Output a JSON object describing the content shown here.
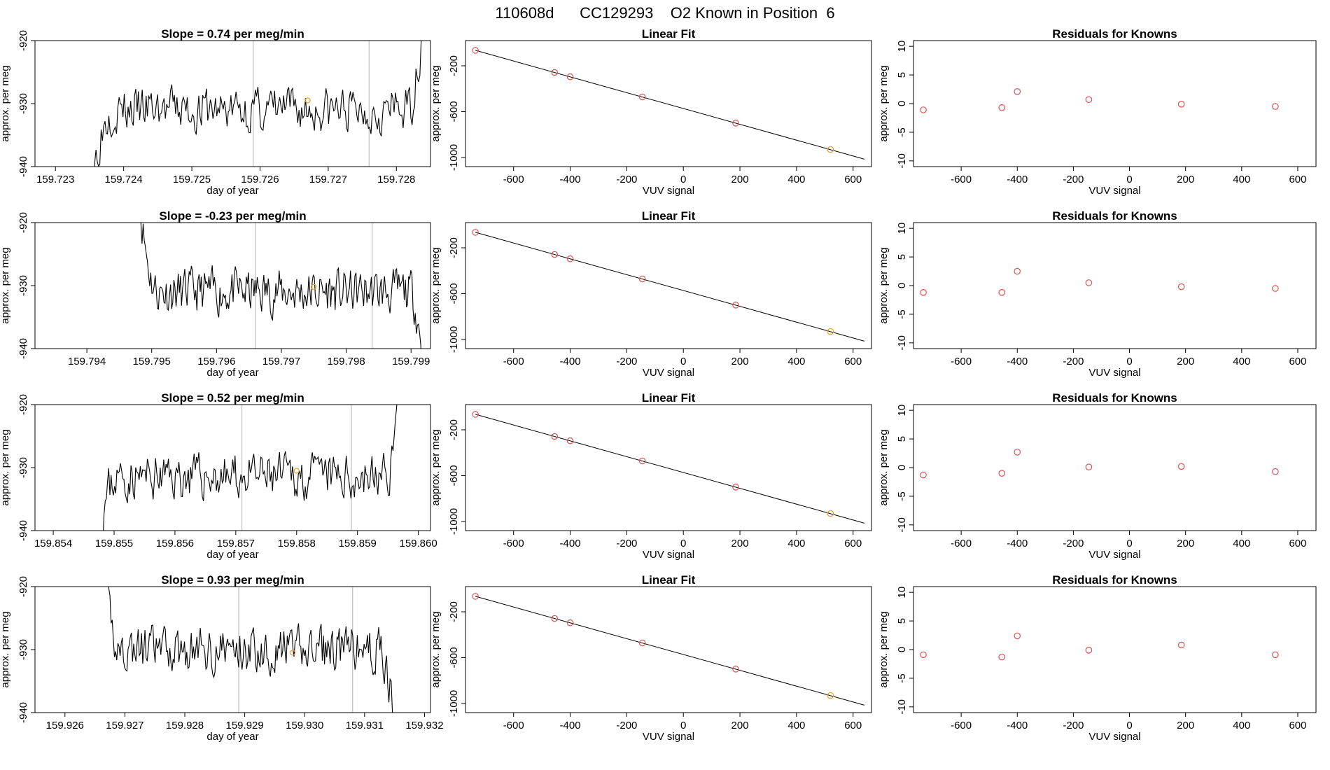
{
  "page_title": "110608d      CC129293    O2 Known in Position  6",
  "colors": {
    "ink": "#000000",
    "guide": "#bfbfbf",
    "residual": "#e05050",
    "known": "#e8a020",
    "frame": "#000000"
  },
  "chart_data": [
    {
      "type": "line",
      "title": "Slope =  0.74  per meg/min",
      "xlabel": "day of year",
      "ylabel": "approx. per meg",
      "xlim": [
        159.7227,
        159.7285
      ],
      "ylim": [
        -940,
        -920
      ],
      "xticks": [
        159.723,
        159.724,
        159.725,
        159.726,
        159.727,
        159.728
      ],
      "xtick_labels": [
        "159.723",
        "159.724",
        "159.725",
        "159.726",
        "159.727",
        "159.728"
      ],
      "yticks": [
        -940,
        -930,
        -920
      ],
      "ytick_labels": [
        "-940",
        "-930",
        "-920"
      ],
      "guides": [
        159.7259,
        159.7276
      ],
      "known_point": [
        159.7267,
        -929.5
      ],
      "x_start": 159.7235,
      "x_end": 159.7284,
      "baseline": -931,
      "amplitude": 3.2,
      "start_mode": "rise",
      "end_mode": "rise",
      "seed": 3
    },
    {
      "type": "scatter",
      "title": "Linear Fit",
      "xlabel": "VUV signal",
      "ylabel": "approx. per meg",
      "xlim": [
        -770,
        665
      ],
      "ylim": [
        -1080,
        20
      ],
      "xticks": [
        -600,
        -400,
        -200,
        0,
        200,
        400,
        600
      ],
      "xtick_labels": [
        "-600",
        "-400",
        "-200",
        "0",
        "200",
        "400",
        "600"
      ],
      "yticks": [
        -1000,
        -600,
        -200
      ],
      "ytick_labels": [
        "-1000",
        "-600",
        "-200"
      ],
      "fit_line": [
        [
          -735,
          -65
        ],
        [
          640,
          -1015
        ]
      ],
      "x": [
        -735,
        -455,
        -400,
        -145,
        185,
        520
      ],
      "y": [
        -65,
        -258,
        -296,
        -472,
        -700,
        -931
      ],
      "point_colors": [
        "residual",
        "residual",
        "residual",
        "residual",
        "residual",
        "known"
      ]
    },
    {
      "type": "scatter",
      "title": "Residuals for Knowns",
      "xlabel": "VUV signal",
      "ylabel": "approx. per meg",
      "xlim": [
        -770,
        665
      ],
      "ylim": [
        -11,
        11
      ],
      "xticks": [
        -600,
        -400,
        -200,
        0,
        200,
        400,
        600
      ],
      "xtick_labels": [
        "-600",
        "-400",
        "-200",
        "0",
        "200",
        "400",
        "600"
      ],
      "yticks": [
        -10,
        -5,
        0,
        5,
        10
      ],
      "ytick_labels": [
        "-10",
        "-5",
        "0",
        "5",
        "10"
      ],
      "x": [
        -735,
        -455,
        -400,
        -145,
        185,
        520
      ],
      "y": [
        -1.1,
        -0.7,
        2.1,
        0.7,
        -0.1,
        -0.5
      ]
    },
    {
      "type": "line",
      "title": "Slope =  -0.23  per meg/min",
      "xlabel": "day of year",
      "ylabel": "approx. per meg",
      "xlim": [
        159.7932,
        159.7993
      ],
      "ylim": [
        -940,
        -920
      ],
      "xticks": [
        159.794,
        159.795,
        159.796,
        159.797,
        159.798,
        159.799
      ],
      "xtick_labels": [
        "159.794",
        "159.795",
        "159.796",
        "159.797",
        "159.798",
        "159.799"
      ],
      "yticks": [
        -940,
        -930,
        -920
      ],
      "ytick_labels": [
        "-940",
        "-930",
        "-920"
      ],
      "guides": [
        159.7966,
        159.7984
      ],
      "known_point": [
        159.7975,
        -930.2
      ],
      "x_start": 159.7948,
      "x_end": 159.7992,
      "baseline": -931,
      "amplitude": 3.2,
      "start_mode": "fall",
      "end_mode": "fall",
      "seed": 11
    },
    {
      "type": "scatter",
      "title": "Linear Fit",
      "xlabel": "VUV signal",
      "ylabel": "approx. per meg",
      "xlim": [
        -770,
        665
      ],
      "ylim": [
        -1080,
        20
      ],
      "xticks": [
        -600,
        -400,
        -200,
        0,
        200,
        400,
        600
      ],
      "xtick_labels": [
        "-600",
        "-400",
        "-200",
        "0",
        "200",
        "400",
        "600"
      ],
      "yticks": [
        -1000,
        -600,
        -200
      ],
      "ytick_labels": [
        "-1000",
        "-600",
        "-200"
      ],
      "fit_line": [
        [
          -735,
          -65
        ],
        [
          640,
          -1015
        ]
      ],
      "x": [
        -735,
        -455,
        -400,
        -145,
        185,
        520
      ],
      "y": [
        -65,
        -258,
        -296,
        -472,
        -700,
        -931
      ],
      "point_colors": [
        "residual",
        "residual",
        "residual",
        "residual",
        "residual",
        "known"
      ]
    },
    {
      "type": "scatter",
      "title": "Residuals for Knowns",
      "xlabel": "VUV signal",
      "ylabel": "approx. per meg",
      "xlim": [
        -770,
        665
      ],
      "ylim": [
        -11,
        11
      ],
      "xticks": [
        -600,
        -400,
        -200,
        0,
        200,
        400,
        600
      ],
      "xtick_labels": [
        "-600",
        "-400",
        "-200",
        "0",
        "200",
        "400",
        "600"
      ],
      "yticks": [
        -10,
        -5,
        0,
        5,
        10
      ],
      "ytick_labels": [
        "-10",
        "-5",
        "0",
        "5",
        "10"
      ],
      "x": [
        -735,
        -455,
        -400,
        -145,
        185,
        520
      ],
      "y": [
        -1.2,
        -1.2,
        2.5,
        0.5,
        -0.2,
        -0.5
      ]
    },
    {
      "type": "line",
      "title": "Slope =  0.52  per meg/min",
      "xlabel": "day of year",
      "ylabel": "approx. per meg",
      "xlim": [
        159.8537,
        159.8602
      ],
      "ylim": [
        -940,
        -920
      ],
      "xticks": [
        159.854,
        159.855,
        159.856,
        159.857,
        159.858,
        159.859,
        159.86
      ],
      "xtick_labels": [
        "159.854",
        "159.855",
        "159.856",
        "159.857",
        "159.858",
        "159.859",
        "159.860"
      ],
      "yticks": [
        -940,
        -930,
        -920
      ],
      "ytick_labels": [
        "-940",
        "-930",
        "-920"
      ],
      "guides": [
        159.8571,
        159.8589
      ],
      "known_point": [
        159.858,
        -930.5
      ],
      "x_start": 159.8547,
      "x_end": 159.8597,
      "baseline": -931.5,
      "amplitude": 3.2,
      "start_mode": "rise",
      "end_mode": "rise",
      "seed": 23
    },
    {
      "type": "scatter",
      "title": "Linear Fit",
      "xlabel": "VUV signal",
      "ylabel": "approx. per meg",
      "xlim": [
        -770,
        665
      ],
      "ylim": [
        -1080,
        20
      ],
      "xticks": [
        -600,
        -400,
        -200,
        0,
        200,
        400,
        600
      ],
      "xtick_labels": [
        "-600",
        "-400",
        "-200",
        "0",
        "200",
        "400",
        "600"
      ],
      "yticks": [
        -1000,
        -600,
        -200
      ],
      "ytick_labels": [
        "-1000",
        "-600",
        "-200"
      ],
      "fit_line": [
        [
          -735,
          -65
        ],
        [
          640,
          -1015
        ]
      ],
      "x": [
        -735,
        -455,
        -400,
        -145,
        185,
        520
      ],
      "y": [
        -65,
        -258,
        -296,
        -472,
        -700,
        -931
      ],
      "point_colors": [
        "residual",
        "residual",
        "residual",
        "residual",
        "residual",
        "known"
      ]
    },
    {
      "type": "scatter",
      "title": "Residuals for Knowns",
      "xlabel": "VUV signal",
      "ylabel": "approx. per meg",
      "xlim": [
        -770,
        665
      ],
      "ylim": [
        -11,
        11
      ],
      "xticks": [
        -600,
        -400,
        -200,
        0,
        200,
        400,
        600
      ],
      "xtick_labels": [
        "-600",
        "-400",
        "-200",
        "0",
        "200",
        "400",
        "600"
      ],
      "yticks": [
        -10,
        -5,
        0,
        5,
        10
      ],
      "ytick_labels": [
        "-10",
        "-5",
        "0",
        "5",
        "10"
      ],
      "x": [
        -735,
        -455,
        -400,
        -145,
        185,
        520
      ],
      "y": [
        -1.3,
        -1.0,
        2.7,
        0.1,
        0.2,
        -0.7
      ]
    },
    {
      "type": "line",
      "title": "Slope =  0.93  per meg/min",
      "xlabel": "day of year",
      "ylabel": "approx. per meg",
      "xlim": [
        159.9255,
        159.9321
      ],
      "ylim": [
        -940,
        -920
      ],
      "xticks": [
        159.926,
        159.927,
        159.928,
        159.929,
        159.93,
        159.931,
        159.932
      ],
      "xtick_labels": [
        "159.926",
        "159.927",
        "159.928",
        "159.929",
        "159.930",
        "159.931",
        "159.932"
      ],
      "yticks": [
        -940,
        -930,
        -920
      ],
      "ytick_labels": [
        "-940",
        "-930",
        "-920"
      ],
      "guides": [
        159.9289,
        159.9308
      ],
      "known_point": [
        159.9298,
        -930.5
      ],
      "x_start": 159.9266,
      "x_end": 159.9315,
      "baseline": -930,
      "amplitude": 3.2,
      "start_mode": "fall",
      "end_mode": "fall",
      "seed": 41
    },
    {
      "type": "scatter",
      "title": "Linear Fit",
      "xlabel": "VUV signal",
      "ylabel": "approx. per meg",
      "xlim": [
        -770,
        665
      ],
      "ylim": [
        -1080,
        20
      ],
      "xticks": [
        -600,
        -400,
        -200,
        0,
        200,
        400,
        600
      ],
      "xtick_labels": [
        "-600",
        "-400",
        "-200",
        "0",
        "200",
        "400",
        "600"
      ],
      "yticks": [
        -1000,
        -600,
        -200
      ],
      "ytick_labels": [
        "-1000",
        "-600",
        "-200"
      ],
      "fit_line": [
        [
          -735,
          -65
        ],
        [
          640,
          -1015
        ]
      ],
      "x": [
        -735,
        -455,
        -400,
        -145,
        185,
        520
      ],
      "y": [
        -65,
        -258,
        -296,
        -472,
        -700,
        -931
      ],
      "point_colors": [
        "residual",
        "residual",
        "residual",
        "residual",
        "residual",
        "known"
      ]
    },
    {
      "type": "scatter",
      "title": "Residuals for Knowns",
      "xlabel": "VUV signal",
      "ylabel": "approx. per meg",
      "xlim": [
        -770,
        665
      ],
      "ylim": [
        -11,
        11
      ],
      "xticks": [
        -600,
        -400,
        -200,
        0,
        200,
        400,
        600
      ],
      "xtick_labels": [
        "-600",
        "-400",
        "-200",
        "0",
        "200",
        "400",
        "600"
      ],
      "yticks": [
        -10,
        -5,
        0,
        5,
        10
      ],
      "ytick_labels": [
        "-10",
        "-5",
        "0",
        "5",
        "10"
      ],
      "x": [
        -735,
        -455,
        -400,
        -145,
        185,
        520
      ],
      "y": [
        -0.9,
        -1.3,
        2.4,
        -0.1,
        0.8,
        -0.9
      ]
    }
  ]
}
